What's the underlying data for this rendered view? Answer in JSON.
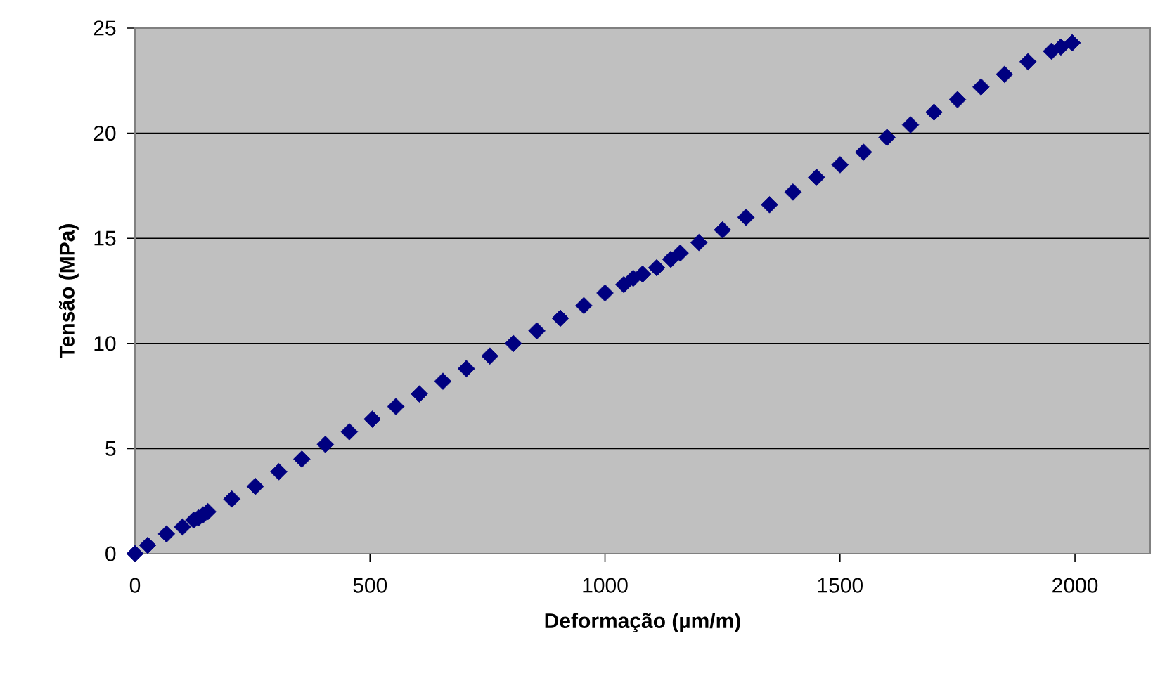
{
  "chart_data": {
    "type": "scatter",
    "xlabel": "Deformação (µm/m)",
    "ylabel": "Tensão (MPa)",
    "xlim": [
      0,
      2160
    ],
    "xticks": [
      0,
      500,
      1000,
      1500,
      2000
    ],
    "ylim": [
      0,
      25
    ],
    "yticks": [
      0,
      5,
      10,
      15,
      20,
      25
    ],
    "grid": "y",
    "marker": "diamond",
    "color": "#000080",
    "x": [
      0,
      27,
      67,
      101,
      125,
      135,
      145,
      155,
      206,
      256,
      306,
      355,
      405,
      456,
      505,
      555,
      605,
      655,
      705,
      755,
      805,
      855,
      905,
      955,
      1000,
      1040,
      1060,
      1080,
      1110,
      1140,
      1160,
      1200,
      1250,
      1300,
      1350,
      1400,
      1450,
      1500,
      1550,
      1600,
      1650,
      1700,
      1750,
      1800,
      1850,
      1900,
      1950,
      1970,
      1994
    ],
    "values": [
      0,
      0.4,
      0.94,
      1.27,
      1.6,
      1.7,
      1.85,
      2.0,
      2.6,
      3.2,
      3.9,
      4.5,
      5.2,
      5.8,
      6.4,
      7.0,
      7.6,
      8.2,
      8.8,
      9.4,
      10.0,
      10.6,
      11.2,
      11.8,
      12.4,
      12.8,
      13.1,
      13.3,
      13.6,
      14.0,
      14.3,
      14.8,
      15.4,
      16.0,
      16.6,
      17.2,
      17.9,
      18.5,
      19.1,
      19.8,
      20.4,
      21.0,
      21.6,
      22.2,
      22.8,
      23.4,
      23.9,
      24.1,
      24.3
    ]
  }
}
